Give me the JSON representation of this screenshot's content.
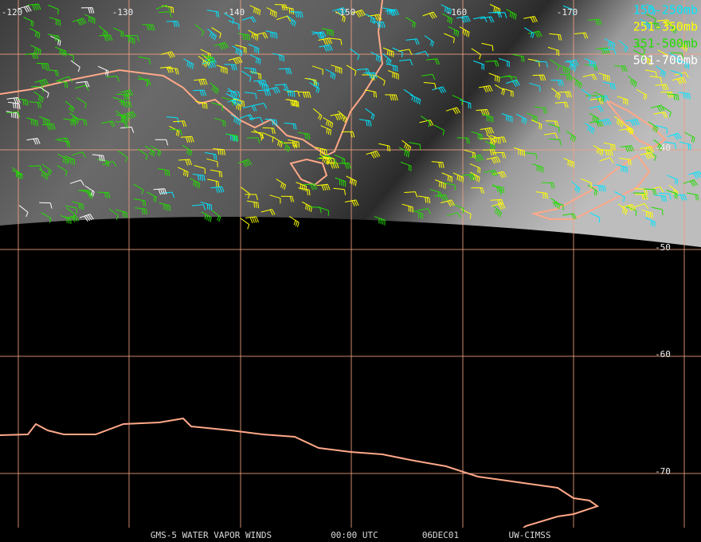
{
  "longitude_labels": [
    "-120",
    "-130",
    "-140",
    "-150",
    "-160",
    "-170"
  ],
  "latitude_labels": [
    "-40",
    "-50",
    "-60",
    "-70"
  ],
  "legend": [
    {
      "label": "150-250mb",
      "color": "#00e5ff"
    },
    {
      "label": "251-350mb",
      "color": "#ffff00"
    },
    {
      "label": "351-500mb",
      "color": "#22dd00"
    },
    {
      "label": "501-700mb",
      "color": "#ffffff"
    }
  ],
  "footer": [
    "GMS-5 WATER VAPOR WINDS",
    "00:00 UTC",
    "06DEC01",
    "UW-CIMSS"
  ]
}
